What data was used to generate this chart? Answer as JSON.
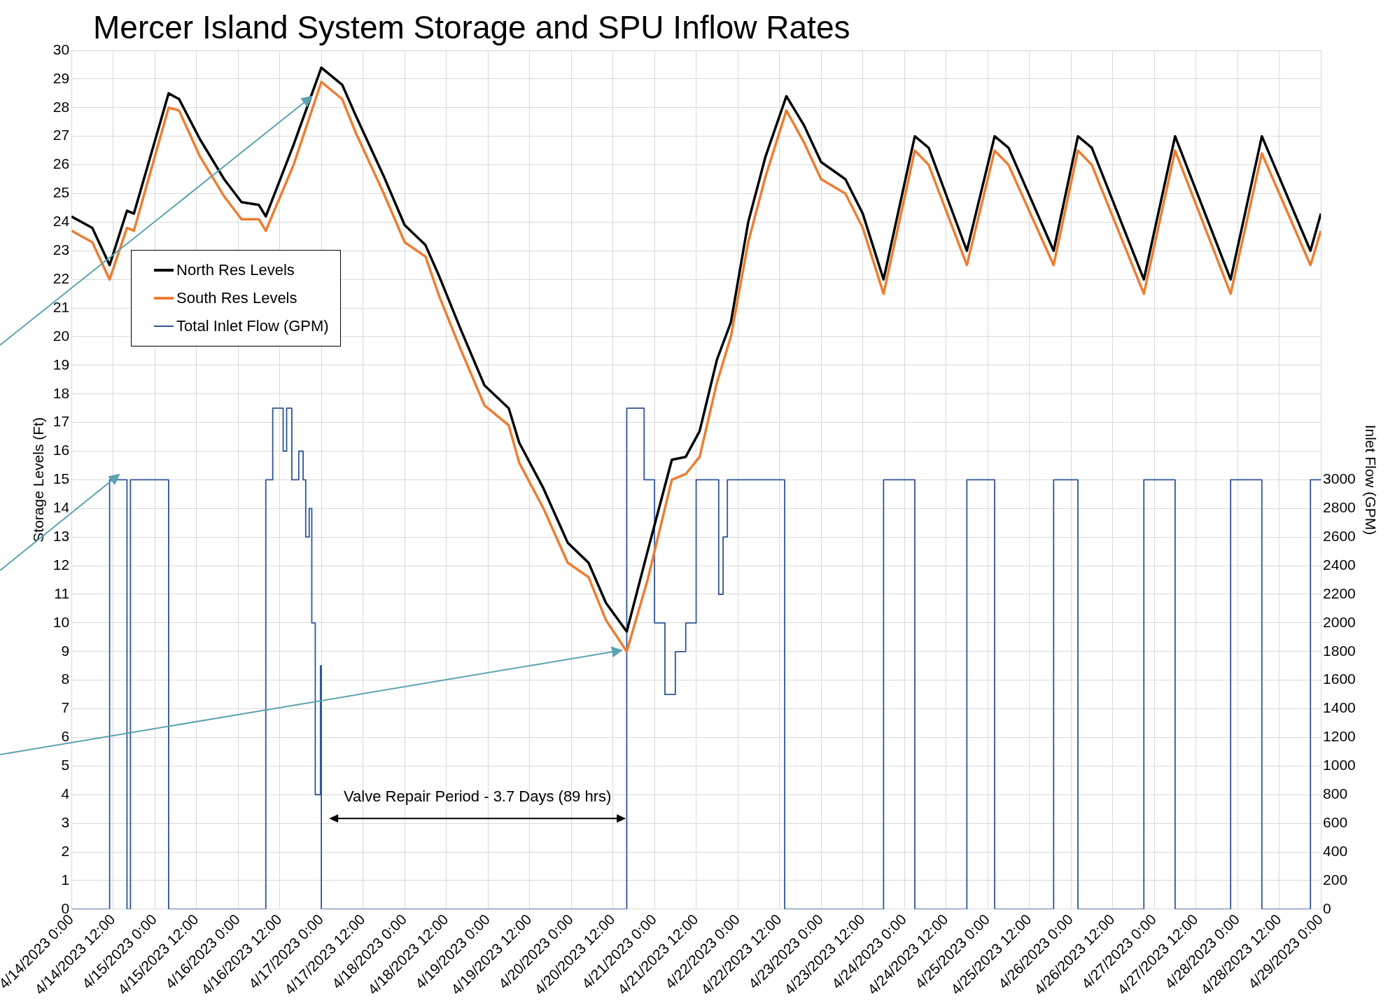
{
  "chart_data": {
    "type": "line",
    "title": "Mercer Island System Storage and SPU Inflow Rates",
    "ylabel": "Storage Levels (Ft)",
    "y2label": "Inlet Flow (GPM)",
    "xlim": [
      "2023-04-14T00:00",
      "2023-04-29T00:00"
    ],
    "xticks": [
      {
        "value": "2023-04-14T00:00",
        "label": "4/14/2023 0:00"
      },
      {
        "value": "2023-04-14T12:00",
        "label": "4/14/2023 12:00"
      },
      {
        "value": "2023-04-15T00:00",
        "label": "4/15/2023 0:00"
      },
      {
        "value": "2023-04-15T12:00",
        "label": "4/15/2023 12:00"
      },
      {
        "value": "2023-04-16T00:00",
        "label": "4/16/2023 0:00"
      },
      {
        "value": "2023-04-16T12:00",
        "label": "4/16/2023 12:00"
      },
      {
        "value": "2023-04-17T00:00",
        "label": "4/17/2023 0:00"
      },
      {
        "value": "2023-04-17T12:00",
        "label": "4/17/2023 12:00"
      },
      {
        "value": "2023-04-18T00:00",
        "label": "4/18/2023 0:00"
      },
      {
        "value": "2023-04-18T12:00",
        "label": "4/18/2023 12:00"
      },
      {
        "value": "2023-04-19T00:00",
        "label": "4/19/2023 0:00"
      },
      {
        "value": "2023-04-19T12:00",
        "label": "4/19/2023 12:00"
      },
      {
        "value": "2023-04-20T00:00",
        "label": "4/20/2023 0:00"
      },
      {
        "value": "2023-04-20T12:00",
        "label": "4/20/2023 12:00"
      },
      {
        "value": "2023-04-21T00:00",
        "label": "4/21/2023 0:00"
      },
      {
        "value": "2023-04-21T12:00",
        "label": "4/21/2023 12:00"
      },
      {
        "value": "2023-04-22T00:00",
        "label": "4/22/2023 0:00"
      },
      {
        "value": "2023-04-22T12:00",
        "label": "4/22/2023 12:00"
      },
      {
        "value": "2023-04-23T00:00",
        "label": "4/23/2023 0:00"
      },
      {
        "value": "2023-04-23T12:00",
        "label": "4/23/2023 12:00"
      },
      {
        "value": "2023-04-24T00:00",
        "label": "4/24/2023 0:00"
      },
      {
        "value": "2023-04-24T12:00",
        "label": "4/24/2023 12:00"
      },
      {
        "value": "2023-04-25T00:00",
        "label": "4/25/2023 0:00"
      },
      {
        "value": "2023-04-25T12:00",
        "label": "4/25/2023 12:00"
      },
      {
        "value": "2023-04-26T00:00",
        "label": "4/26/2023 0:00"
      },
      {
        "value": "2023-04-26T12:00",
        "label": "4/26/2023 12:00"
      },
      {
        "value": "2023-04-27T00:00",
        "label": "4/27/2023 0:00"
      },
      {
        "value": "2023-04-27T12:00",
        "label": "4/27/2023 12:00"
      },
      {
        "value": "2023-04-28T00:00",
        "label": "4/28/2023 0:00"
      },
      {
        "value": "2023-04-28T12:00",
        "label": "4/28/2023 12:00"
      },
      {
        "value": "2023-04-29T00:00",
        "label": "4/29/2023 0:00"
      }
    ],
    "ylim": [
      0,
      30
    ],
    "yticks": [
      0,
      1,
      2,
      3,
      4,
      5,
      6,
      7,
      8,
      9,
      10,
      11,
      12,
      13,
      14,
      15,
      16,
      17,
      18,
      19,
      20,
      21,
      22,
      23,
      24,
      25,
      26,
      27,
      28,
      29,
      30
    ],
    "y2lim": [
      0,
      6000
    ],
    "y2ticks": [
      0,
      200,
      400,
      600,
      800,
      1000,
      1200,
      1400,
      1600,
      1800,
      2000,
      2200,
      2400,
      2600,
      2800,
      3000
    ],
    "grid": true,
    "legend": "left",
    "series": [
      {
        "name": "North Res Levels",
        "color": "#000000",
        "x": [
          "2023-04-14T00:00",
          "2023-04-14T06:00",
          "2023-04-14T11:00",
          "2023-04-14T16:00",
          "2023-04-14T18:00",
          "2023-04-15T04:00",
          "2023-04-15T07:00",
          "2023-04-15T13:00",
          "2023-04-15T20:00",
          "2023-04-16T01:00",
          "2023-04-16T06:00",
          "2023-04-16T08:00",
          "2023-04-16T16:00",
          "2023-04-17T00:00",
          "2023-04-17T06:00",
          "2023-04-17T10:00",
          "2023-04-17T18:00",
          "2023-04-18T00:00",
          "2023-04-18T06:00",
          "2023-04-18T10:00",
          "2023-04-18T16:00",
          "2023-04-18T23:00",
          "2023-04-19T06:00",
          "2023-04-19T09:00",
          "2023-04-19T16:00",
          "2023-04-19T23:00",
          "2023-04-20T05:00",
          "2023-04-20T10:00",
          "2023-04-20T16:00",
          "2023-04-20T22:00",
          "2023-04-21T05:00",
          "2023-04-21T09:00",
          "2023-04-21T13:00",
          "2023-04-21T18:00",
          "2023-04-21T22:00",
          "2023-04-22T03:00",
          "2023-04-22T08:00",
          "2023-04-22T14:00",
          "2023-04-22T19:00",
          "2023-04-23T00:00",
          "2023-04-23T07:00",
          "2023-04-23T12:00",
          "2023-04-23T18:00",
          "2023-04-24T03:00",
          "2023-04-24T07:00",
          "2023-04-24T18:00",
          "2023-04-25T02:00",
          "2023-04-25T06:00",
          "2023-04-25T19:00",
          "2023-04-26T02:00",
          "2023-04-26T06:00",
          "2023-04-26T21:00",
          "2023-04-27T06:00",
          "2023-04-27T22:00",
          "2023-04-28T07:00",
          "2023-04-28T21:00",
          "2023-04-29T00:00"
        ],
        "values": [
          24.2,
          23.8,
          22.5,
          24.4,
          24.3,
          28.5,
          28.3,
          26.9,
          25.5,
          24.7,
          24.6,
          24.2,
          26.7,
          29.4,
          28.8,
          27.7,
          25.6,
          23.9,
          23.2,
          22.1,
          20.3,
          18.3,
          17.5,
          16.3,
          14.7,
          12.8,
          12.1,
          10.7,
          9.7,
          12.5,
          15.7,
          15.8,
          16.7,
          19.2,
          20.5,
          24.0,
          26.3,
          28.4,
          27.4,
          26.1,
          25.5,
          24.3,
          22.0,
          27.0,
          26.6,
          23.0,
          27.0,
          26.6,
          23.0,
          27.0,
          26.6,
          22.0,
          27.0,
          22.0,
          27.0,
          23.0,
          24.3
        ]
      },
      {
        "name": "South Res Levels",
        "color": "#ed7d31",
        "x": [
          "2023-04-14T00:00",
          "2023-04-14T06:00",
          "2023-04-14T11:00",
          "2023-04-14T16:00",
          "2023-04-14T18:00",
          "2023-04-15T04:00",
          "2023-04-15T07:00",
          "2023-04-15T13:00",
          "2023-04-15T20:00",
          "2023-04-16T01:00",
          "2023-04-16T06:00",
          "2023-04-16T08:00",
          "2023-04-16T16:00",
          "2023-04-17T00:00",
          "2023-04-17T06:00",
          "2023-04-17T10:00",
          "2023-04-17T18:00",
          "2023-04-18T00:00",
          "2023-04-18T06:00",
          "2023-04-18T10:00",
          "2023-04-18T16:00",
          "2023-04-18T23:00",
          "2023-04-19T06:00",
          "2023-04-19T09:00",
          "2023-04-19T16:00",
          "2023-04-19T23:00",
          "2023-04-20T05:00",
          "2023-04-20T10:00",
          "2023-04-20T16:00",
          "2023-04-20T22:00",
          "2023-04-21T05:00",
          "2023-04-21T09:00",
          "2023-04-21T13:00",
          "2023-04-21T18:00",
          "2023-04-21T22:00",
          "2023-04-22T03:00",
          "2023-04-22T08:00",
          "2023-04-22T14:00",
          "2023-04-22T19:00",
          "2023-04-23T00:00",
          "2023-04-23T07:00",
          "2023-04-23T12:00",
          "2023-04-23T18:00",
          "2023-04-24T03:00",
          "2023-04-24T07:00",
          "2023-04-24T18:00",
          "2023-04-25T02:00",
          "2023-04-25T06:00",
          "2023-04-25T19:00",
          "2023-04-26T02:00",
          "2023-04-26T06:00",
          "2023-04-26T21:00",
          "2023-04-27T06:00",
          "2023-04-27T22:00",
          "2023-04-28T07:00",
          "2023-04-28T21:00",
          "2023-04-29T00:00"
        ],
        "values": [
          23.7,
          23.3,
          22.0,
          23.8,
          23.7,
          28.0,
          27.9,
          26.3,
          24.9,
          24.1,
          24.1,
          23.7,
          26.0,
          28.9,
          28.3,
          27.1,
          25.0,
          23.3,
          22.8,
          21.4,
          19.6,
          17.6,
          16.9,
          15.6,
          14.0,
          12.1,
          11.6,
          10.1,
          9.0,
          11.5,
          15.0,
          15.2,
          15.8,
          18.4,
          20.0,
          23.3,
          25.6,
          27.9,
          26.8,
          25.5,
          25.0,
          23.8,
          21.5,
          26.5,
          26.0,
          22.5,
          26.5,
          26.0,
          22.5,
          26.5,
          26.0,
          21.5,
          26.5,
          21.5,
          26.4,
          22.5,
          23.7
        ]
      },
      {
        "name": "Total Inlet Flow (GPM)",
        "color": "#2f5597",
        "axis": "y2",
        "x": [
          "2023-04-14T00:00",
          "2023-04-14T11:00",
          "2023-04-14T11:00",
          "2023-04-14T16:00",
          "2023-04-14T16:00",
          "2023-04-14T17:00",
          "2023-04-14T17:00",
          "2023-04-15T04:00",
          "2023-04-15T04:00",
          "2023-04-16T08:00",
          "2023-04-16T08:00",
          "2023-04-16T10:00",
          "2023-04-16T10:00",
          "2023-04-16T13:00",
          "2023-04-16T13:00",
          "2023-04-16T14:00",
          "2023-04-16T14:00",
          "2023-04-16T15:30",
          "2023-04-16T15:30",
          "2023-04-16T17:30",
          "2023-04-16T17:30",
          "2023-04-16T18:45",
          "2023-04-16T18:45",
          "2023-04-16T19:30",
          "2023-04-16T19:30",
          "2023-04-16T20:30",
          "2023-04-16T20:30",
          "2023-04-16T21:15",
          "2023-04-16T21:15",
          "2023-04-16T22:15",
          "2023-04-16T22:15",
          "2023-04-16T23:45",
          "2023-04-16T23:45",
          "2023-04-17T00:00",
          "2023-04-17T00:00",
          "2023-04-20T16:00",
          "2023-04-20T16:00",
          "2023-04-20T21:00",
          "2023-04-20T21:00",
          "2023-04-21T00:00",
          "2023-04-21T00:00",
          "2023-04-21T03:00",
          "2023-04-21T03:00",
          "2023-04-21T06:00",
          "2023-04-21T06:00",
          "2023-04-21T09:00",
          "2023-04-21T09:00",
          "2023-04-21T12:00",
          "2023-04-21T12:00",
          "2023-04-21T18:30",
          "2023-04-21T18:30",
          "2023-04-21T19:45",
          "2023-04-21T19:45",
          "2023-04-21T21:00",
          "2023-04-21T21:00",
          "2023-04-22T13:30",
          "2023-04-22T13:30",
          "2023-04-23T18:00",
          "2023-04-23T18:00",
          "2023-04-24T03:00",
          "2023-04-24T03:00",
          "2023-04-24T18:00",
          "2023-04-24T18:00",
          "2023-04-25T02:00",
          "2023-04-25T02:00",
          "2023-04-25T19:00",
          "2023-04-25T19:00",
          "2023-04-26T02:00",
          "2023-04-26T02:00",
          "2023-04-26T21:00",
          "2023-04-26T21:00",
          "2023-04-27T06:00",
          "2023-04-27T06:00",
          "2023-04-27T22:00",
          "2023-04-27T22:00",
          "2023-04-28T07:00",
          "2023-04-28T07:00",
          "2023-04-28T21:00",
          "2023-04-28T21:00",
          "2023-04-29T00:00"
        ],
        "values": [
          0,
          0,
          3000,
          3000,
          0,
          0,
          3000,
          3000,
          0,
          0,
          3000,
          3000,
          3500,
          3500,
          3200,
          3200,
          3500,
          3500,
          3000,
          3000,
          3200,
          3200,
          3000,
          3000,
          2600,
          2600,
          2800,
          2800,
          2000,
          2000,
          800,
          800,
          1700,
          1700,
          0,
          0,
          3500,
          3500,
          3000,
          3000,
          2000,
          2000,
          1500,
          1500,
          1800,
          1800,
          2000,
          2000,
          3000,
          3000,
          2200,
          2200,
          2600,
          2600,
          3000,
          3000,
          0,
          0,
          3000,
          3000,
          0,
          0,
          3000,
          3000,
          0,
          0,
          3000,
          3000,
          0,
          0,
          3000,
          3000,
          0,
          0,
          3000,
          3000,
          0,
          0,
          3000,
          3000
        ]
      }
    ],
    "annotations": [
      "Valve Repair Period - 3.7 Days (89 hrs)"
    ]
  }
}
